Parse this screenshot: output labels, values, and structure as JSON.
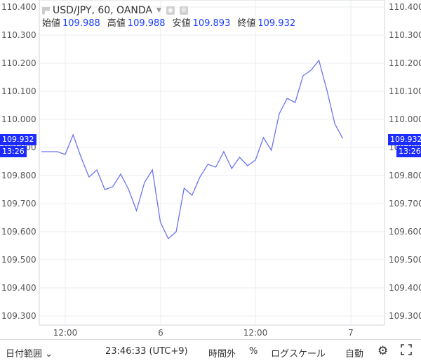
{
  "legend": {
    "symbol": "USD/JPY, 60, OANDA",
    "ohlc": [
      {
        "label": "始値",
        "value": "109.988"
      },
      {
        "label": "高値",
        "value": "109.988"
      },
      {
        "label": "安値",
        "value": "109.893"
      },
      {
        "label": "終値",
        "value": "109.932"
      }
    ]
  },
  "last_price": {
    "value": "109.932",
    "time": "13:26"
  },
  "bottom_bar": {
    "date_range": "日付範囲",
    "clock": "23:46:33 (UTC+9)",
    "session": "時間外",
    "percent": "%",
    "log_scale": "ログスケール",
    "auto": "自動"
  },
  "colors": {
    "line": "#6b74f0",
    "price_tag": "#1c2bff",
    "grid": "#e9ecef"
  },
  "chart_data": {
    "type": "line",
    "series": [
      {
        "values": [
          109.885,
          109.885,
          109.885,
          109.875,
          109.945,
          109.865,
          109.795,
          109.82,
          109.75,
          109.76,
          109.805,
          109.75,
          109.675,
          109.775,
          109.82,
          109.635,
          109.575,
          109.6,
          109.755,
          109.73,
          109.795,
          109.84,
          109.83,
          109.885,
          109.825,
          109.865,
          109.835,
          109.855,
          109.935,
          109.89,
          110.02,
          110.075,
          110.06,
          110.155,
          110.175,
          110.21,
          110.105,
          109.985,
          109.932
        ]
      }
    ],
    "xlabels": [
      "12:00",
      "6",
      "12:00",
      "7"
    ],
    "ylabels": [
      "109.300",
      "109.400",
      "109.500",
      "109.600",
      "109.700",
      "109.800",
      "109.900",
      "110.000",
      "110.100",
      "110.200",
      "110.300",
      "110.400"
    ],
    "ylim": [
      109.3,
      110.4
    ],
    "grid": true
  }
}
